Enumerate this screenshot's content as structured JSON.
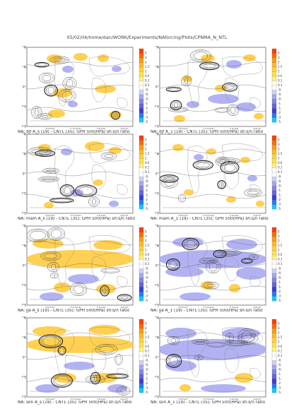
{
  "header": {
    "path": "05/02/04/home/dan/WORK/Experiments/NAforcing/Plots/CPNMA_N_NTL"
  },
  "map": {
    "lat_ticks": [
      "80°N",
      "40°N",
      "0°",
      "40°S",
      "80°S"
    ],
    "lon_ticks": [
      "150°E",
      "110°W",
      "10°W",
      "90°E"
    ],
    "colorbar_labels": [
      "5",
      "3",
      "2",
      "1.5",
      "1",
      "0.6",
      "0.3",
      "0.1",
      "-0.1",
      "-0.3",
      "-0.6",
      "-1",
      "-1.5",
      "-2",
      "-3",
      "-5"
    ],
    "colorbar_colors": [
      "#ff3c00",
      "#ff6a00",
      "#ff9a14",
      "#ffba28",
      "#ffd23c",
      "#ffe24a",
      "#fff07a",
      "#ffffff",
      "#ffffff",
      "#cfcff8",
      "#a7a7f0",
      "#8585e6",
      "#6464de",
      "#3d3dd2",
      "#1e7cff",
      "#14c8ff"
    ]
  },
  "panels": [
    {
      "id": "djf-19",
      "caption": "NA: djf A_s (19) - CNTL (35): GPH 500(HPa) sh:s/n ratio"
    },
    {
      "id": "djf-1",
      "caption": "NA: djf A_1 (19) - CNTL (35): GPH 500(HPa) sh:s/n ratio"
    },
    {
      "id": "mam-19",
      "caption": "NA: mam A_s (19) - CNTL (35): GPH 500(HPa) sh:s/n ratio"
    },
    {
      "id": "mam-1",
      "caption": "NA: mam A_1 (19) - CNTL (35): GPH 500(HPa) sh:s/n ratio"
    },
    {
      "id": "jja-19",
      "caption": "NA: jja A_s (19) - CNTL (35): GPH 500(HPa) sh:s/n ratio"
    },
    {
      "id": "jja-1",
      "caption": "NA: jja A_1 (19) - CNTL (35): GPH 500(HPa) sh:s/n ratio"
    },
    {
      "id": "son-19",
      "caption": "NA: son A_s (19) - CNTL (35): GPH 500(HPa) sh:s/n ratio"
    },
    {
      "id": "son-1",
      "caption": "NA: son A_1 (19) - CNTL (35): GPH 500(HPa) sh:s/n ratio"
    }
  ]
}
